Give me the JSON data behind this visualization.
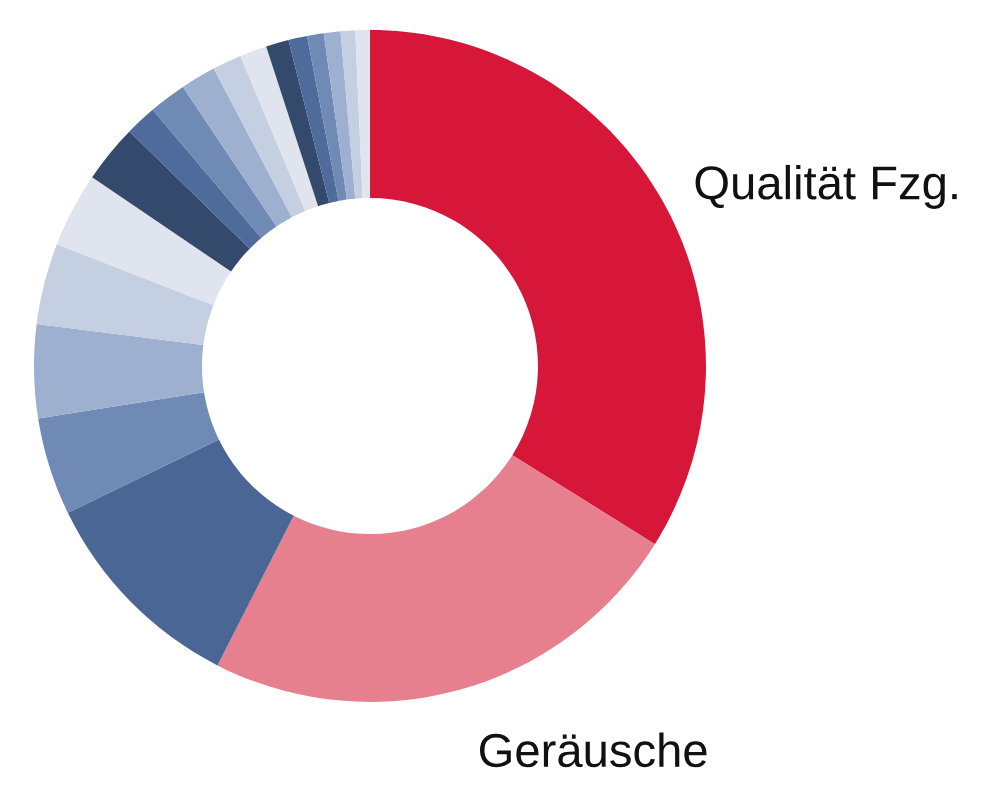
{
  "chart_data": {
    "type": "donut",
    "categories": [
      "Qualität Fzg.",
      "Geräusche",
      null,
      null,
      null,
      null,
      null,
      null,
      null,
      null,
      null,
      null,
      null,
      null,
      null,
      null,
      null,
      null,
      null
    ],
    "values": [
      33.9,
      23.6,
      10.3,
      4.7,
      4.5,
      3.9,
      3.6,
      2.8,
      1.5,
      1.8,
      1.7,
      1.4,
      1.3,
      1.1,
      0.9,
      0.8,
      0.8,
      0.7,
      0.7
    ],
    "colors": [
      "#d6173a",
      "#e6808f",
      "#4a6694",
      "#6f8ab5",
      "#9db0d0",
      "#c5cfe2",
      "#dfe4ef",
      "#344a6c",
      "#4e6b9b",
      "#6f8ab5",
      "#9db0d0",
      "#c5cfe2",
      "#dfe4ef",
      "#344a6c",
      "#4e6b9b",
      "#6f8ab5",
      "#9db0d0",
      "#c5cfe2",
      "#dfe4ef"
    ],
    "legend": false
  }
}
